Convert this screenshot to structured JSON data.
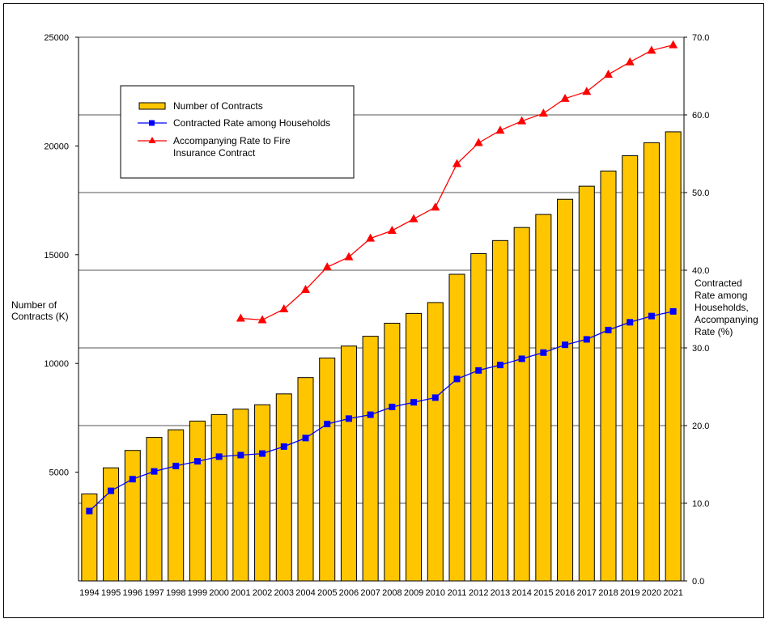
{
  "chart_data": {
    "type": "bar",
    "categories": [
      "1994",
      "1995",
      "1996",
      "1997",
      "1998",
      "1999",
      "2000",
      "2001",
      "2002",
      "2003",
      "2004",
      "2005",
      "2006",
      "2007",
      "2008",
      "2009",
      "2010",
      "2011",
      "2012",
      "2013",
      "2014",
      "2015",
      "2016",
      "2017",
      "2018",
      "2019",
      "2020",
      "2021"
    ],
    "series": [
      {
        "name": "Number of Contracts",
        "type": "bar",
        "axis": "left",
        "color": "#FFC600",
        "values": [
          4000,
          5200,
          6000,
          6600,
          6950,
          7350,
          7650,
          7900,
          8100,
          8600,
          9350,
          10250,
          10800,
          11250,
          11850,
          12300,
          12800,
          14100,
          15050,
          15650,
          16250,
          16850,
          17550,
          18150,
          18850,
          19550,
          20150,
          20650
        ]
      },
      {
        "name": "Contracted Rate among Households",
        "type": "line",
        "axis": "right",
        "color": "#0000FF",
        "marker": "square",
        "values": [
          9.0,
          11.6,
          13.1,
          14.1,
          14.8,
          15.4,
          16.0,
          16.2,
          16.4,
          17.3,
          18.4,
          20.2,
          20.9,
          21.4,
          22.4,
          23.0,
          23.6,
          26.0,
          27.1,
          27.8,
          28.6,
          29.4,
          30.4,
          31.1,
          32.3,
          33.3,
          34.1,
          34.7
        ]
      },
      {
        "name": "Accompanying Rate to Fire Insurance Contract",
        "type": "line",
        "axis": "right",
        "color": "#FF0000",
        "marker": "triangle",
        "values": [
          null,
          null,
          null,
          null,
          null,
          null,
          null,
          33.8,
          33.6,
          35.0,
          37.5,
          40.4,
          41.7,
          44.1,
          45.1,
          46.6,
          48.1,
          53.7,
          56.4,
          58.0,
          59.2,
          60.2,
          62.1,
          63.0,
          65.2,
          66.8,
          68.3,
          69.0
        ]
      }
    ],
    "left_axis": {
      "label_lines": [
        "Number of",
        "Contracts (K)"
      ],
      "ylim": [
        0,
        25000
      ],
      "ticks": [
        "5000",
        "10000",
        "15000",
        "20000",
        "25000"
      ],
      "tick_values": [
        5000,
        10000,
        15000,
        20000,
        25000
      ]
    },
    "right_axis": {
      "label_lines": [
        "Contracted",
        "Rate among",
        "Households,",
        "Accompanying",
        "Rate (%)"
      ],
      "ylim": [
        0,
        70
      ],
      "ticks": [
        "0.0",
        "10.0",
        "20.0",
        "30.0",
        "40.0",
        "50.0",
        "60.0",
        "70.0"
      ],
      "tick_values": [
        0,
        10,
        20,
        30,
        40,
        50,
        60,
        70
      ]
    },
    "legend": {
      "placement": "top-left",
      "entries": [
        {
          "label_lines": [
            "Number of Contracts"
          ]
        },
        {
          "label_lines": [
            "Contracted Rate among Households"
          ]
        },
        {
          "label_lines": [
            "Accompanying Rate to Fire",
            "Insurance Contract"
          ]
        }
      ]
    },
    "grid": "horizontal"
  }
}
